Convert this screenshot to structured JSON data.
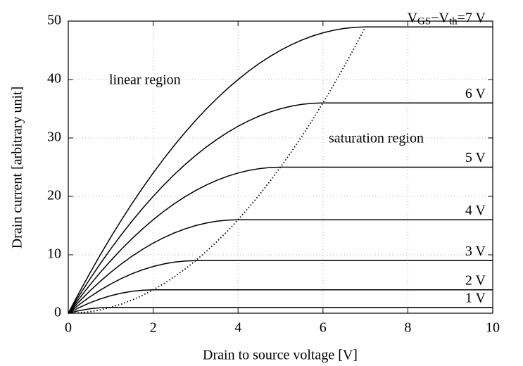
{
  "chart_data": {
    "type": "line",
    "xlabel": "Drain to source voltage [V]",
    "ylabel": "Drain current [arbitrary unit]",
    "annotations": [
      "linear region",
      "saturation region"
    ],
    "xlim": [
      0,
      10
    ],
    "ylim": [
      0,
      50
    ],
    "xticks": [
      0,
      2,
      4,
      6,
      8,
      10
    ],
    "yticks": [
      0,
      10,
      20,
      30,
      40,
      50
    ],
    "grid": true,
    "x": [
      0,
      0.25,
      0.5,
      0.75,
      1,
      1.25,
      1.5,
      1.75,
      2,
      2.25,
      2.5,
      2.75,
      3,
      3.25,
      3.5,
      3.75,
      4,
      4.25,
      4.5,
      4.75,
      5,
      5.25,
      5.5,
      5.75,
      6,
      6.25,
      6.5,
      6.75,
      7,
      7.25,
      7.5,
      7.75,
      8,
      8.25,
      8.5,
      8.75,
      9,
      9.25,
      9.5,
      9.75,
      10
    ],
    "series": [
      {
        "name": "1 V",
        "color": "#000000",
        "values": [
          0,
          0.4375,
          0.75,
          0.9375,
          1,
          1,
          1,
          1,
          1,
          1,
          1,
          1,
          1,
          1,
          1,
          1,
          1,
          1,
          1,
          1,
          1,
          1,
          1,
          1,
          1,
          1,
          1,
          1,
          1,
          1,
          1,
          1,
          1,
          1,
          1,
          1,
          1,
          1,
          1,
          1,
          1
        ]
      },
      {
        "name": "2 V",
        "color": "#000000",
        "values": [
          0,
          0.9375,
          1.75,
          2.4375,
          3,
          3.4375,
          3.75,
          3.9375,
          4,
          4,
          4,
          4,
          4,
          4,
          4,
          4,
          4,
          4,
          4,
          4,
          4,
          4,
          4,
          4,
          4,
          4,
          4,
          4,
          4,
          4,
          4,
          4,
          4,
          4,
          4,
          4,
          4,
          4,
          4,
          4,
          4
        ]
      },
      {
        "name": "3 V",
        "color": "#000000",
        "values": [
          0,
          1.4375,
          2.75,
          3.9375,
          5,
          5.9375,
          6.75,
          7.4375,
          8,
          8.4375,
          8.75,
          8.9375,
          9,
          9,
          9,
          9,
          9,
          9,
          9,
          9,
          9,
          9,
          9,
          9,
          9,
          9,
          9,
          9,
          9,
          9,
          9,
          9,
          9,
          9,
          9,
          9,
          9,
          9,
          9,
          9,
          9
        ]
      },
      {
        "name": "4 V",
        "color": "#000000",
        "values": [
          0,
          1.9375,
          3.75,
          5.4375,
          7,
          8.4375,
          9.75,
          10.9375,
          12,
          12.9375,
          13.75,
          14.4375,
          15,
          15.4375,
          15.75,
          15.9375,
          16,
          16,
          16,
          16,
          16,
          16,
          16,
          16,
          16,
          16,
          16,
          16,
          16,
          16,
          16,
          16,
          16,
          16,
          16,
          16,
          16,
          16,
          16,
          16,
          16
        ]
      },
      {
        "name": "5 V",
        "color": "#000000",
        "values": [
          0,
          2.4375,
          4.75,
          6.9375,
          9,
          10.9375,
          12.75,
          14.4375,
          16,
          17.4375,
          18.75,
          19.9375,
          21,
          21.9375,
          22.75,
          23.4375,
          24,
          24.4375,
          24.75,
          24.9375,
          25,
          25,
          25,
          25,
          25,
          25,
          25,
          25,
          25,
          25,
          25,
          25,
          25,
          25,
          25,
          25,
          25,
          25,
          25,
          25,
          25
        ]
      },
      {
        "name": "6 V",
        "color": "#000000",
        "values": [
          0,
          2.9375,
          5.75,
          8.4375,
          11,
          13.4375,
          15.75,
          17.9375,
          20,
          21.9375,
          23.75,
          25.4375,
          27,
          28.4375,
          29.75,
          30.9375,
          32,
          32.9375,
          33.75,
          34.4375,
          35,
          35.4375,
          35.75,
          35.9375,
          36,
          36,
          36,
          36,
          36,
          36,
          36,
          36,
          36,
          36,
          36,
          36,
          36,
          36,
          36,
          36,
          36
        ]
      },
      {
        "name": "VGS−Vth=7 V",
        "color": "#000000",
        "values": [
          0,
          3.4375,
          6.75,
          9.9375,
          13,
          15.9375,
          18.75,
          21.4375,
          24,
          26.4375,
          28.75,
          30.9375,
          33,
          34.9375,
          36.75,
          38.4375,
          40,
          41.4375,
          42.75,
          43.9375,
          45,
          45.9375,
          46.75,
          47.4375,
          48,
          48.4375,
          48.75,
          48.9375,
          49,
          49,
          49,
          49,
          49,
          49,
          49,
          49,
          49,
          49,
          49,
          49,
          49
        ]
      },
      {
        "color": "#000000",
        "style": "dotted",
        "values": [
          0,
          0.0625,
          0.25,
          0.5625,
          1,
          1.5625,
          2.25,
          3.0625,
          4,
          5.0625,
          6.25,
          7.5625,
          9,
          10.5625,
          12.25,
          14.0625,
          16,
          18.0625,
          20.25,
          22.5625,
          25,
          27.5625,
          30.25,
          33.0625,
          36,
          39.0625,
          42.25,
          45.5625,
          49,
          null,
          null,
          null,
          null,
          null,
          null,
          null,
          null,
          null,
          null,
          null,
          null
        ]
      }
    ]
  }
}
